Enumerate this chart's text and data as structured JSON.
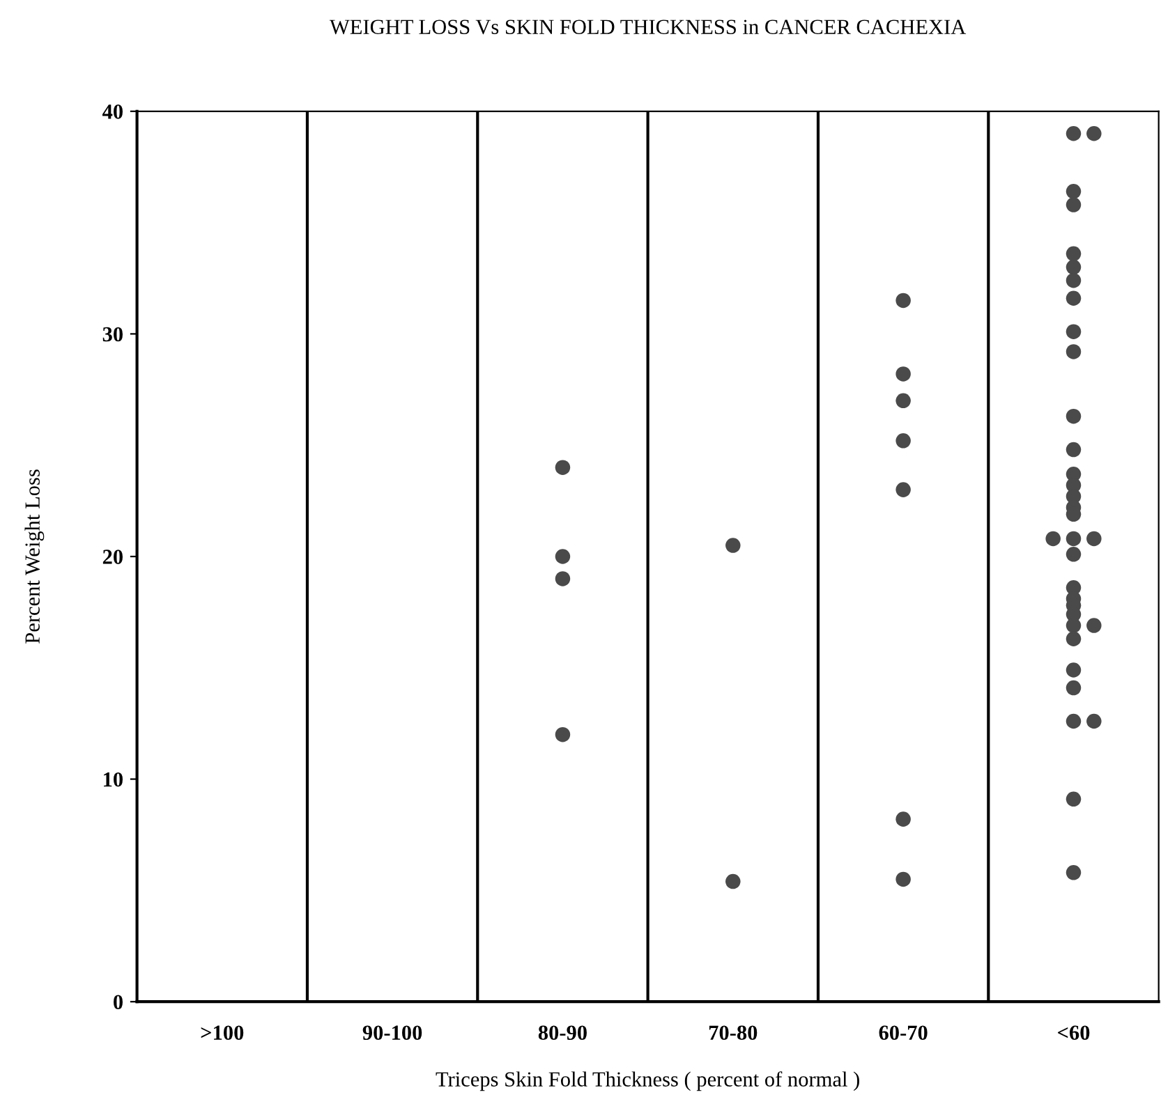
{
  "chart_data": {
    "type": "scatter",
    "title": "WEIGHT LOSS Vs SKIN FOLD THICKNESS in CANCER CACHEXIA",
    "xlabel": "Triceps Skin Fold Thickness ( percent of normal )",
    "ylabel": "Percent Weight Loss",
    "categories": [
      ">100",
      "90-100",
      "80-90",
      "70-80",
      "60-70",
      "<60"
    ],
    "series": [
      {
        "color": "#4a4a4a",
        "x": [
          "<60"
        ],
        "values": [
          20.8
        ]
      },
      {
        "color": "#4a4a4a",
        "x": [
          "80-90",
          "80-90",
          "80-90",
          "80-90",
          "70-80",
          "70-80",
          "60-70",
          "60-70",
          "60-70",
          "60-70",
          "60-70",
          "60-70",
          "60-70",
          "<60",
          "<60",
          "<60",
          "<60",
          "<60",
          "<60",
          "<60",
          "<60",
          "<60",
          "<60",
          "<60",
          "<60",
          "<60",
          "<60",
          "<60",
          "<60",
          "<60",
          "<60",
          "<60",
          "<60",
          "<60",
          "<60",
          "<60",
          "<60",
          "<60",
          "<60",
          "<60",
          "<60",
          "<60"
        ],
        "values": [
          24,
          20,
          19,
          12,
          20.5,
          5.4,
          31.5,
          28.2,
          27,
          25.2,
          23,
          8.2,
          5.5,
          39,
          36.4,
          35.8,
          33.6,
          33,
          32.4,
          31.6,
          30.1,
          29.2,
          26.3,
          24.8,
          23.7,
          23.2,
          22.7,
          22.2,
          21.9,
          20.8,
          20.1,
          18.6,
          18.1,
          17.8,
          17.4,
          16.9,
          16.3,
          14.9,
          14.1,
          12.6,
          9.1,
          5.8
        ]
      },
      {
        "color": "#4a4a4a",
        "x": [
          "<60",
          "<60",
          "<60",
          "<60"
        ],
        "values": [
          39,
          20.8,
          16.9,
          12.6
        ]
      }
    ],
    "ylim": [
      0,
      40
    ],
    "yticks": [
      0,
      10,
      20,
      30,
      40
    ],
    "grid": "x",
    "marker": "circle"
  }
}
